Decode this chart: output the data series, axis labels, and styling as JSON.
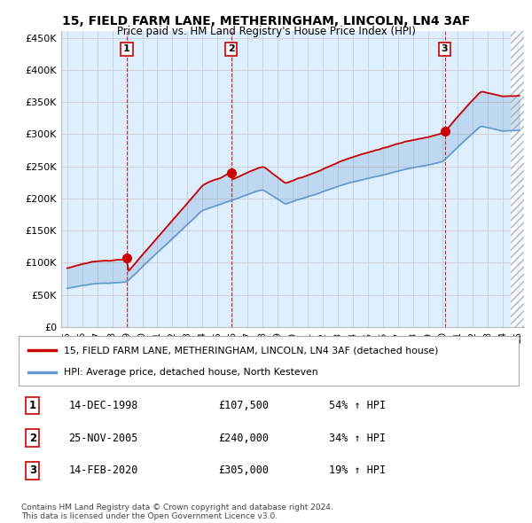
{
  "title": "15, FIELD FARM LANE, METHERINGHAM, LINCOLN, LN4 3AF",
  "subtitle": "Price paid vs. HM Land Registry's House Price Index (HPI)",
  "ylim": [
    0,
    460000
  ],
  "yticks": [
    0,
    50000,
    100000,
    150000,
    200000,
    250000,
    300000,
    350000,
    400000,
    450000
  ],
  "xlim_start": 1994.6,
  "xlim_end": 2025.4,
  "background_color": "#ffffff",
  "chart_bg_color": "#ddeeff",
  "grid_color": "#cccccc",
  "sale_color": "#cc0000",
  "hpi_color": "#6699cc",
  "fill_color": "#ccddf0",
  "purchases": [
    {
      "label": 1,
      "date_str": "14-DEC-1998",
      "year": 1998.96,
      "price": 107500
    },
    {
      "label": 2,
      "date_str": "25-NOV-2005",
      "year": 2005.9,
      "price": 240000
    },
    {
      "label": 3,
      "date_str": "14-FEB-2020",
      "year": 2020.12,
      "price": 305000
    }
  ],
  "purchase_pct": [
    "54%",
    "34%",
    "19%"
  ],
  "legend_label_sale": "15, FIELD FARM LANE, METHERINGHAM, LINCOLN, LN4 3AF (detached house)",
  "legend_label_hpi": "HPI: Average price, detached house, North Kesteven",
  "footer1": "Contains HM Land Registry data © Crown copyright and database right 2024.",
  "footer2": "This data is licensed under the Open Government Licence v3.0.",
  "hatch_start_year": 2024.5
}
